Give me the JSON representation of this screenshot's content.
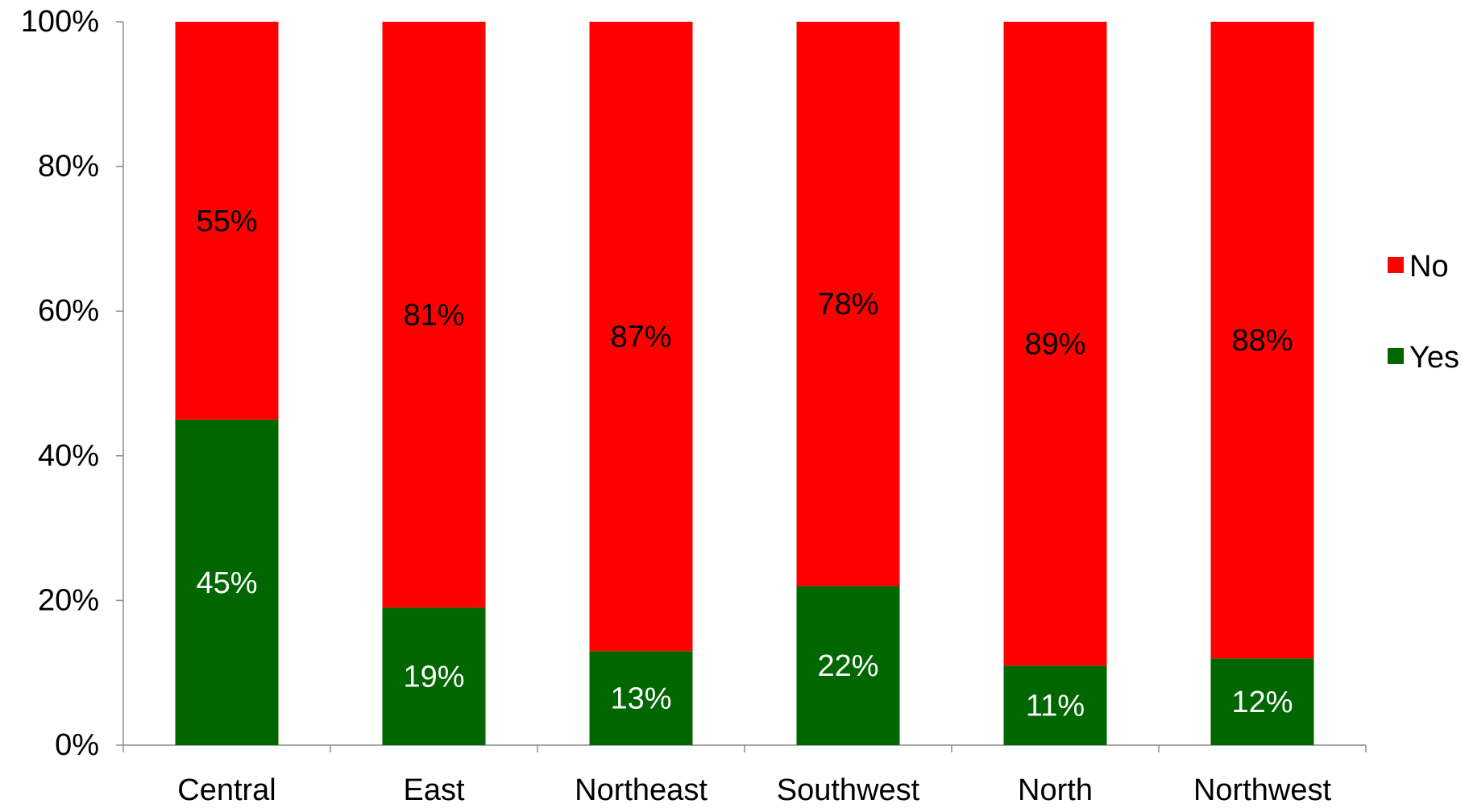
{
  "chart_data": {
    "type": "bar",
    "stacked": true,
    "percent_stacked": true,
    "categories": [
      "Central",
      "East",
      "Northeast",
      "Southwest",
      "North",
      "Northwest"
    ],
    "series": [
      {
        "name": "Yes",
        "color": "#006600",
        "values": [
          45,
          19,
          13,
          22,
          11,
          12
        ],
        "labels": [
          "45%",
          "19%",
          "13%",
          "22%",
          "11%",
          "12%"
        ]
      },
      {
        "name": "No",
        "color": "#ff0000",
        "values": [
          55,
          81,
          87,
          78,
          89,
          88
        ],
        "labels": [
          "55%",
          "81%",
          "87%",
          "78%",
          "89%",
          "88%"
        ]
      }
    ],
    "ylim": [
      0,
      100
    ],
    "yticks": [
      "0%",
      "20%",
      "40%",
      "60%",
      "80%",
      "100%"
    ],
    "title": "",
    "xlabel": "",
    "ylabel": "",
    "grid": false,
    "legend": {
      "position": "right",
      "entries": [
        "No",
        "Yes"
      ]
    }
  }
}
